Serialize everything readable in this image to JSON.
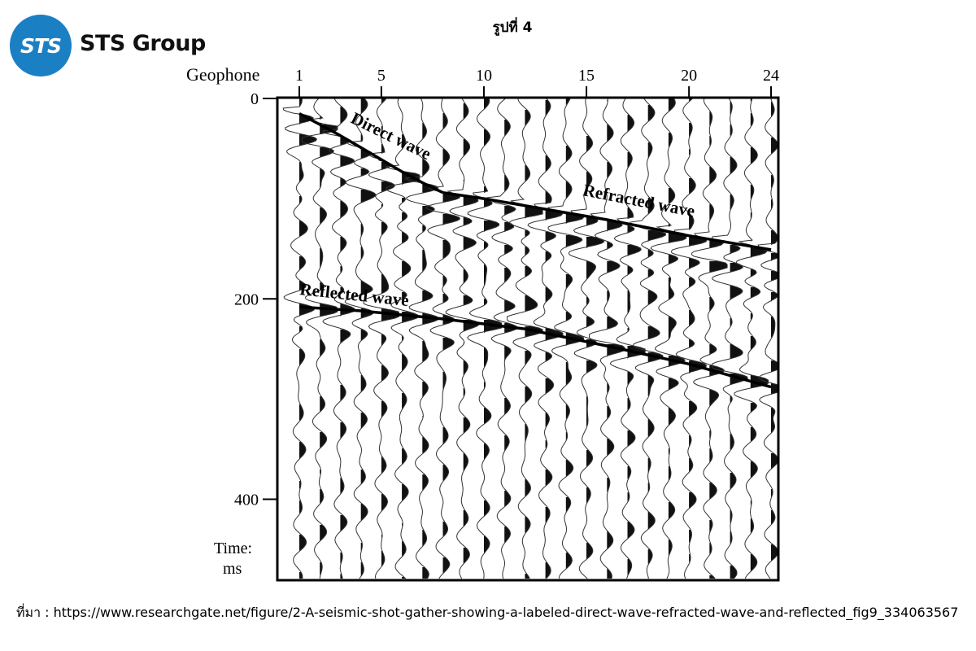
{
  "brand": {
    "logo_text": "STS",
    "name": "STS Group",
    "color": "#1b7fc4"
  },
  "figure_title": "รูปที่ 4",
  "source_text": "ที่มา : https://www.researchgate.net/figure/2-A-seismic-shot-gather-showing-a-labeled-direct-wave-refracted-wave-and-reflected_fig9_334063567",
  "chart_data": {
    "type": "line",
    "subtype": "seismic-shot-gather",
    "xlabel": "Geophone",
    "ylabel_line1": "Time:",
    "ylabel_line2": "ms",
    "x_range": [
      1,
      24
    ],
    "y_range": [
      0,
      480
    ],
    "x_ticks": [
      1,
      5,
      10,
      15,
      20,
      24
    ],
    "y_ticks": [
      0,
      200,
      400
    ],
    "y_inverted": true,
    "traces": 24,
    "series": [
      {
        "name": "Direct wave",
        "x": [
          1,
          2,
          3,
          4,
          5,
          6,
          7,
          8
        ],
        "y": [
          15,
          26,
          37,
          49,
          61,
          73,
          84,
          94
        ]
      },
      {
        "name": "Refracted wave",
        "x": [
          8,
          10,
          12,
          14,
          16,
          18,
          20,
          22,
          24
        ],
        "y": [
          94,
          100,
          107,
          114,
          121,
          129,
          137,
          144,
          151
        ]
      },
      {
        "name": "Reflected wave",
        "x": [
          1,
          4,
          8,
          12,
          16,
          20,
          24
        ],
        "y": [
          208,
          212,
          220,
          230,
          247,
          265,
          288
        ]
      }
    ]
  }
}
